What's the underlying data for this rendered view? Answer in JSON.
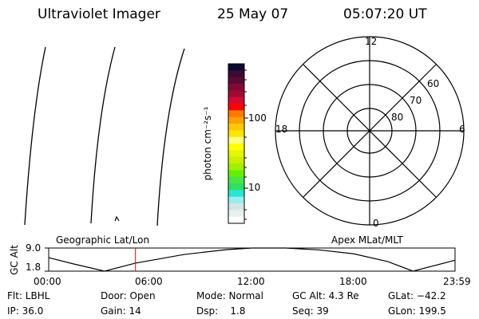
{
  "header": {
    "instrument": "Ultraviolet Imager",
    "date": "25 May 07",
    "time": "05:07:20 UT"
  },
  "colorbar": {
    "label": "photon cm⁻²s⁻¹",
    "tick_labels": [
      "100",
      "10"
    ],
    "colors": [
      "#0a0a32",
      "#3c0a32",
      "#5a0a32",
      "#820a32",
      "#a00a32",
      "#d20a32",
      "#ff0000",
      "#ff7800",
      "#ffa000",
      "#ffc800",
      "#ffe600",
      "#ffff82",
      "#ffff00",
      "#e6f500",
      "#c8f000",
      "#a0f000",
      "#64f000",
      "#46e646",
      "#2ee060",
      "#28e6d2",
      "#96eef0",
      "#d2e6e6",
      "#e6f0ec",
      "#ffffff"
    ]
  },
  "polar_plot": {
    "mlt_labels": {
      "top": "12",
      "bottom": "0",
      "left": "18",
      "right": "6"
    },
    "lat_labels": [
      "80",
      "70",
      "60"
    ],
    "lat_circles": [
      80,
      70,
      60,
      50
    ]
  },
  "chart_data": {
    "type": "line",
    "title_left": "Geographic Lat/Lon",
    "title_right": "Apex MLat/MLT",
    "ylabel": "GC Alt",
    "ytick_labels": [
      "9.0",
      "1.8"
    ],
    "ylim": [
      1.8,
      9.0
    ],
    "xtick_labels": [
      "00:00",
      "06:00",
      "12:00",
      "18:00",
      "23:59"
    ],
    "xlim_hours": [
      0,
      23.98
    ],
    "x_hours": [
      0,
      1.5,
      3.3,
      5.12,
      8,
      10.5,
      12,
      14,
      16,
      18,
      20,
      21.5,
      23.98
    ],
    "y_re": [
      6.0,
      4.0,
      1.8,
      4.3,
      7.0,
      8.5,
      9.0,
      9.0,
      8.4,
      7.2,
      4.8,
      1.8,
      5.2
    ],
    "current_time_hours": 5.12,
    "current_time_color": "#ff0000"
  },
  "footer": {
    "row1": [
      "Flt: LBHL",
      "Door: Open",
      "Mode: Normal",
      "GC Alt: 4.3 Re",
      "GLat: −42.2"
    ],
    "row2": [
      "IP: 36.0",
      "Gain: 14",
      "Dsp:    1.8",
      "Seq: 39",
      "GLon: 199.5"
    ]
  }
}
